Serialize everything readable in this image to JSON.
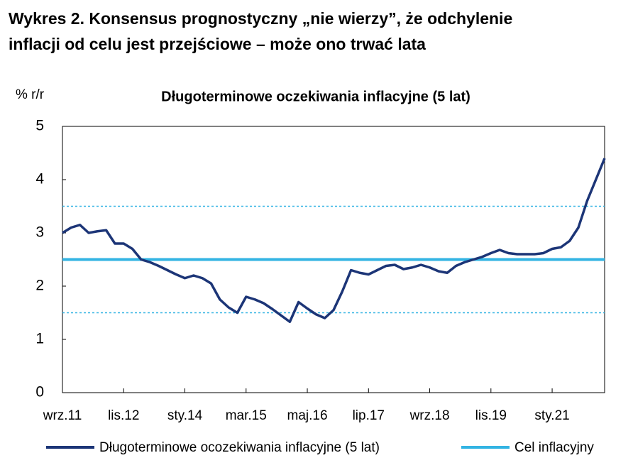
{
  "heading_lines": [
    "Wykres 2. Konsensus prognostyczny „nie wierzy”, że odchylenie",
    "inflacji od celu jest przejściowe – może ono trwać lata"
  ],
  "chart_data": {
    "type": "line",
    "title": "Długoterminowe oczekiwania inflacyjne (5 lat)",
    "y_label": "% r/r",
    "categories": [
      "wrz.11",
      null,
      null,
      null,
      null,
      null,
      null,
      "lis.12",
      null,
      null,
      null,
      null,
      null,
      null,
      "sty.14",
      null,
      null,
      null,
      null,
      null,
      null,
      "mar.15",
      null,
      null,
      null,
      null,
      null,
      null,
      "maj.16",
      null,
      null,
      null,
      null,
      null,
      null,
      "lip.17",
      null,
      null,
      null,
      null,
      null,
      null,
      "wrz.18",
      null,
      null,
      null,
      null,
      null,
      null,
      "lis.19",
      null,
      null,
      null,
      null,
      null,
      null,
      "sty.21",
      null,
      null,
      null,
      null,
      null,
      null
    ],
    "series": [
      {
        "name": "Długoterminowe ocozekiwania inflacyjne (5 lat)",
        "color": "#1c3577",
        "values": [
          3.0,
          3.1,
          3.15,
          3.0,
          3.03,
          3.05,
          2.8,
          2.8,
          2.7,
          2.5,
          2.45,
          2.38,
          2.3,
          2.22,
          2.15,
          2.2,
          2.15,
          2.05,
          1.75,
          1.6,
          1.5,
          1.8,
          1.75,
          1.68,
          1.57,
          1.45,
          1.33,
          1.7,
          1.58,
          1.47,
          1.4,
          1.55,
          1.9,
          2.3,
          2.25,
          2.22,
          2.3,
          2.38,
          2.4,
          2.32,
          2.35,
          2.4,
          2.35,
          2.28,
          2.25,
          2.38,
          2.45,
          2.5,
          2.55,
          2.62,
          2.68,
          2.62,
          2.6,
          2.6,
          2.6,
          2.62,
          2.7,
          2.73,
          2.85,
          3.1,
          3.6,
          4.0,
          4.4
        ]
      }
    ],
    "target": {
      "name": "Cel inflacyjny",
      "color": "#33b4e3",
      "value": 2.5
    },
    "tolerance_band": [
      1.5,
      3.5
    ],
    "ylim": [
      0,
      5
    ],
    "yticks": [
      0,
      1,
      2,
      3,
      4,
      5
    ],
    "grid": false
  }
}
